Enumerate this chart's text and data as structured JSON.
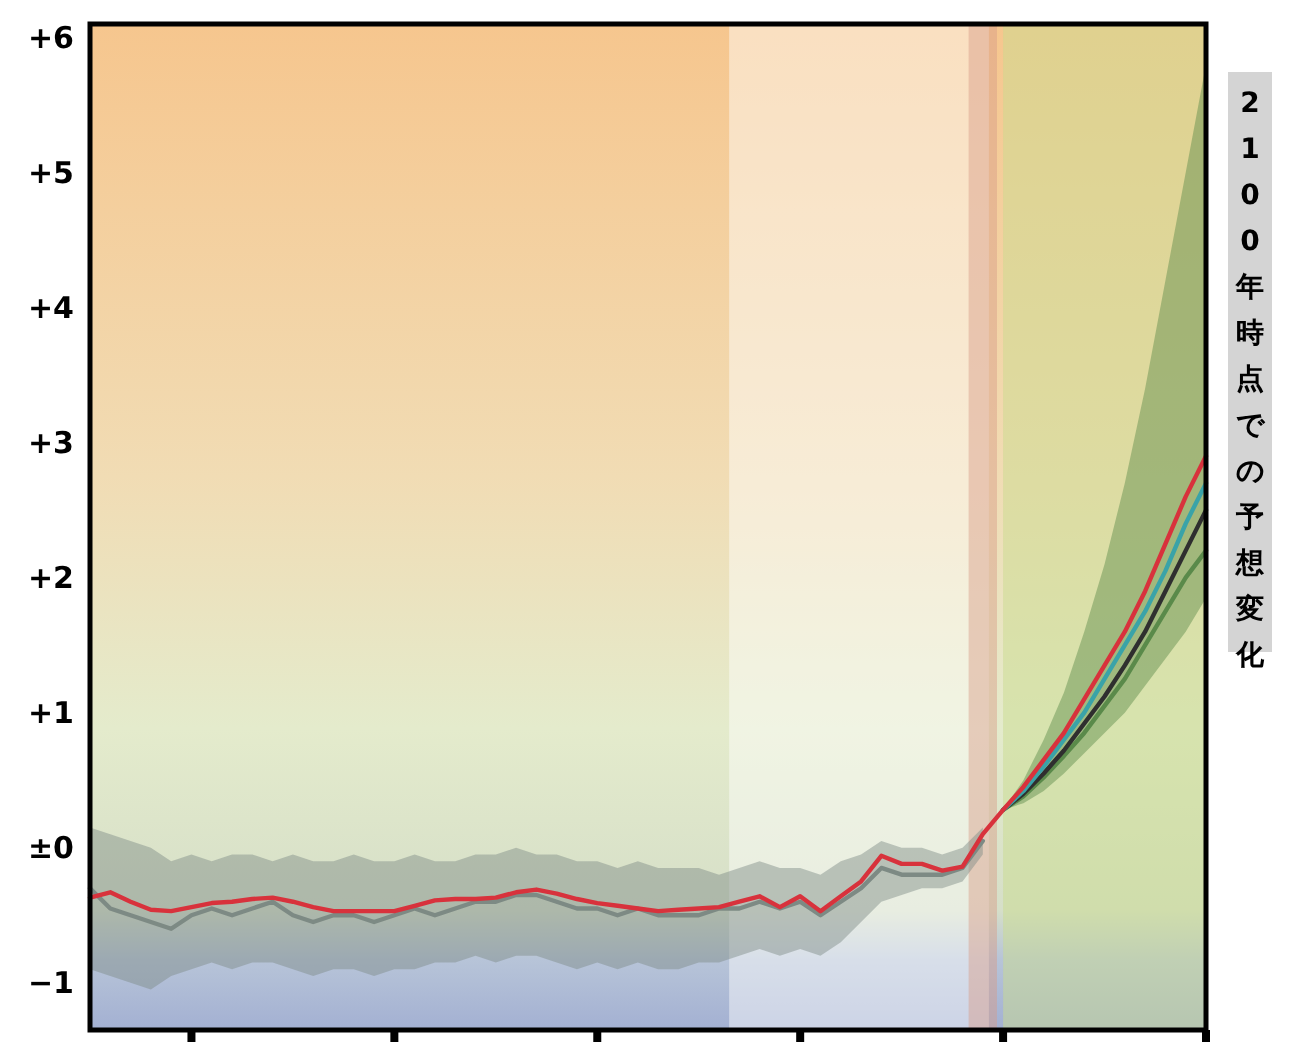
{
  "chart_data": {
    "type": "line",
    "categories": [
      null,
      null,
      null,
      null,
      null,
      null,
      null,
      null,
      null,
      null,
      null,
      null,
      null,
      null,
      null,
      null,
      null,
      null,
      null,
      null,
      null,
      null,
      null,
      null,
      null,
      null,
      null,
      null,
      null,
      null,
      null,
      null,
      null,
      null,
      null,
      null,
      null,
      null,
      null,
      null,
      null,
      null,
      null,
      null,
      null,
      null,
      null,
      null,
      null,
      null,
      null,
      null,
      null,
      null,
      null,
      null
    ],
    "ylim": [
      -1.35,
      6.1
    ],
    "yticks": [
      {
        "value": -1,
        "label": "−1"
      },
      {
        "value": 0,
        "label": "±0"
      },
      {
        "value": 1,
        "label": "+1"
      },
      {
        "value": 2,
        "label": "+2"
      },
      {
        "value": 3,
        "label": "+3"
      },
      {
        "value": 4,
        "label": "+4"
      },
      {
        "value": 5,
        "label": "+5"
      },
      {
        "value": 6,
        "label": "+6"
      }
    ],
    "tick_labels": "y",
    "annotations": [
      "2100年時点での予想変化"
    ],
    "series": [
      {
        "color": "#7d8a84",
        "values": [
          -0.3,
          -0.45,
          -0.5,
          -0.55,
          -0.6,
          -0.5,
          -0.45,
          -0.5,
          -0.45,
          -0.4,
          -0.5,
          -0.55,
          -0.5,
          -0.5,
          -0.55,
          -0.5,
          -0.45,
          -0.5,
          -0.45,
          -0.4,
          -0.4,
          -0.35,
          -0.35,
          -0.4,
          -0.45,
          -0.45,
          -0.5,
          -0.45,
          -0.5,
          -0.5,
          -0.5,
          -0.45,
          -0.45,
          -0.4,
          -0.45,
          -0.4,
          -0.5,
          -0.4,
          -0.3,
          -0.15,
          -0.2,
          -0.2,
          -0.2,
          -0.15,
          0.05,
          null,
          null,
          null,
          null,
          null,
          null,
          null,
          null,
          null,
          null,
          null
        ],
        "lower": [
          -0.9,
          -0.95,
          -1.0,
          -1.05,
          -0.95,
          -0.9,
          -0.85,
          -0.9,
          -0.85,
          -0.85,
          -0.9,
          -0.95,
          -0.9,
          -0.9,
          -0.95,
          -0.9,
          -0.9,
          -0.85,
          -0.85,
          -0.8,
          -0.85,
          -0.8,
          -0.8,
          -0.85,
          -0.9,
          -0.85,
          -0.9,
          -0.85,
          -0.9,
          -0.9,
          -0.85,
          -0.85,
          -0.8,
          -0.75,
          -0.8,
          -0.75,
          -0.8,
          -0.7,
          -0.55,
          -0.4,
          -0.35,
          -0.3,
          -0.3,
          -0.25,
          -0.05,
          null,
          null,
          null,
          null,
          null,
          null,
          null,
          null,
          null,
          null,
          null
        ],
        "upper": [
          0.15,
          0.1,
          0.05,
          0.0,
          -0.1,
          -0.05,
          -0.1,
          -0.05,
          -0.05,
          -0.1,
          -0.05,
          -0.1,
          -0.1,
          -0.05,
          -0.1,
          -0.1,
          -0.05,
          -0.1,
          -0.1,
          -0.05,
          -0.05,
          -0.0,
          -0.05,
          -0.05,
          -0.1,
          -0.1,
          -0.15,
          -0.1,
          -0.15,
          -0.15,
          -0.15,
          -0.2,
          -0.15,
          -0.1,
          -0.15,
          -0.15,
          -0.2,
          -0.1,
          -0.05,
          0.05,
          0.0,
          0.0,
          -0.05,
          0.0,
          0.15,
          null,
          null,
          null,
          null,
          null,
          null,
          null,
          null,
          null,
          null,
          null
        ]
      },
      {
        "color": "#5a8a4a",
        "values": [
          null,
          null,
          null,
          null,
          null,
          null,
          null,
          null,
          null,
          null,
          null,
          null,
          null,
          null,
          null,
          null,
          null,
          null,
          null,
          null,
          null,
          null,
          null,
          null,
          null,
          null,
          null,
          null,
          null,
          null,
          null,
          null,
          null,
          null,
          null,
          null,
          null,
          null,
          null,
          null,
          null,
          null,
          null,
          null,
          null,
          0.28,
          0.38,
          0.52,
          0.68,
          0.85,
          1.05,
          1.25,
          1.5,
          1.75,
          2.0,
          2.2
        ],
        "lower": [
          null,
          null,
          null,
          null,
          null,
          null,
          null,
          null,
          null,
          null,
          null,
          null,
          null,
          null,
          null,
          null,
          null,
          null,
          null,
          null,
          null,
          null,
          null,
          null,
          null,
          null,
          null,
          null,
          null,
          null,
          null,
          null,
          null,
          null,
          null,
          null,
          null,
          null,
          null,
          null,
          null,
          null,
          null,
          null,
          null,
          0.28,
          0.33,
          0.42,
          0.55,
          0.7,
          0.85,
          1.0,
          1.2,
          1.4,
          1.6,
          1.85
        ],
        "upper": [
          null,
          null,
          null,
          null,
          null,
          null,
          null,
          null,
          null,
          null,
          null,
          null,
          null,
          null,
          null,
          null,
          null,
          null,
          null,
          null,
          null,
          null,
          null,
          null,
          null,
          null,
          null,
          null,
          null,
          null,
          null,
          null,
          null,
          null,
          null,
          null,
          null,
          null,
          null,
          null,
          null,
          null,
          null,
          null,
          null,
          0.28,
          0.5,
          0.8,
          1.15,
          1.6,
          2.1,
          2.7,
          3.4,
          4.2,
          5.0,
          5.8
        ]
      },
      {
        "color": "#2f2f2f",
        "values": [
          null,
          null,
          null,
          null,
          null,
          null,
          null,
          null,
          null,
          null,
          null,
          null,
          null,
          null,
          null,
          null,
          null,
          null,
          null,
          null,
          null,
          null,
          null,
          null,
          null,
          null,
          null,
          null,
          null,
          null,
          null,
          null,
          null,
          null,
          null,
          null,
          null,
          null,
          null,
          null,
          null,
          null,
          null,
          null,
          null,
          0.28,
          0.4,
          0.55,
          0.72,
          0.92,
          1.12,
          1.35,
          1.6,
          1.9,
          2.2,
          2.5
        ]
      },
      {
        "color": "#3aa3a8",
        "values": [
          null,
          null,
          null,
          null,
          null,
          null,
          null,
          null,
          null,
          null,
          null,
          null,
          null,
          null,
          null,
          null,
          null,
          null,
          null,
          null,
          null,
          null,
          null,
          null,
          null,
          null,
          null,
          null,
          null,
          null,
          null,
          null,
          null,
          null,
          null,
          null,
          null,
          null,
          null,
          null,
          null,
          null,
          null,
          null,
          null,
          0.28,
          0.42,
          0.6,
          0.8,
          1.0,
          1.25,
          1.5,
          1.75,
          2.05,
          2.4,
          2.7
        ]
      },
      {
        "color": "#d8323c",
        "values": [
          -0.37,
          -0.33,
          -0.4,
          -0.46,
          -0.47,
          -0.44,
          -0.41,
          -0.4,
          -0.38,
          -0.37,
          -0.4,
          -0.44,
          -0.47,
          -0.47,
          -0.47,
          -0.47,
          -0.43,
          -0.39,
          -0.38,
          -0.38,
          -0.37,
          -0.33,
          -0.31,
          -0.34,
          -0.38,
          -0.41,
          -0.43,
          -0.45,
          -0.47,
          -0.46,
          -0.45,
          -0.44,
          -0.4,
          -0.36,
          -0.44,
          -0.36,
          -0.47,
          -0.36,
          -0.25,
          -0.06,
          -0.12,
          -0.12,
          -0.17,
          -0.14,
          0.1,
          0.28,
          0.45,
          0.65,
          0.85,
          1.1,
          1.35,
          1.6,
          1.9,
          2.25,
          2.6,
          2.9
        ]
      }
    ]
  }
}
